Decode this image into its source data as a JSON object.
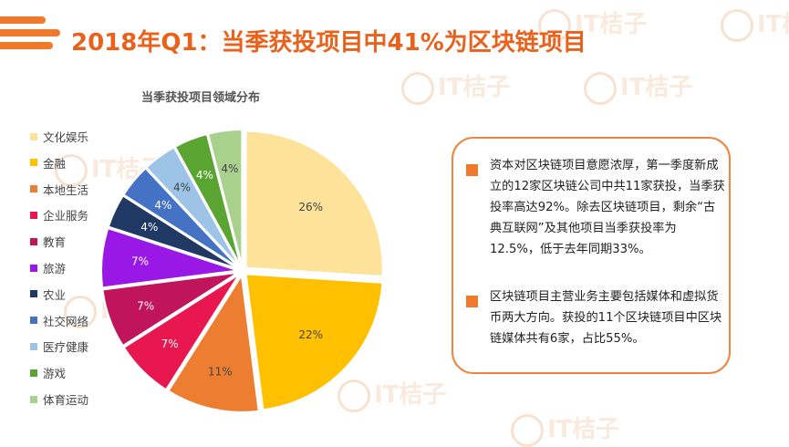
{
  "page": {
    "title": "2018年Q1：当季获投项目中41%为区块链项目",
    "watermark_text": "IT桔子"
  },
  "colors": {
    "accent": "#f07a2b",
    "title": "#e8621c"
  },
  "chart_data": {
    "type": "pie",
    "title": "当季获投项目领域分布",
    "slices": [
      {
        "label": "文化娱乐",
        "value": 26,
        "display": "26%",
        "color": "#fde39a"
      },
      {
        "label": "金融",
        "value": 22,
        "display": "22%",
        "color": "#ffc000"
      },
      {
        "label": "本地生活",
        "value": 11,
        "display": "11%",
        "color": "#ed7d31"
      },
      {
        "label": "企业服务",
        "value": 7,
        "display": "7%",
        "color": "#e8174f"
      },
      {
        "label": "教育",
        "value": 7,
        "display": "7%",
        "color": "#c0145b"
      },
      {
        "label": "旅游",
        "value": 7,
        "display": "7%",
        "color": "#9a18e6"
      },
      {
        "label": "农业",
        "value": 4,
        "display": "4%",
        "color": "#1f3864"
      },
      {
        "label": "社交网络",
        "value": 4,
        "display": "4%",
        "color": "#4472c4"
      },
      {
        "label": "医疗健康",
        "value": 4,
        "display": "4%",
        "color": "#9dc3e6"
      },
      {
        "label": "游戏",
        "value": 4,
        "display": "4%",
        "color": "#5aa531"
      },
      {
        "label": "体育运动",
        "value": 4,
        "display": "4%",
        "color": "#a9d18e"
      }
    ],
    "legend_position": "left"
  },
  "info": {
    "paragraphs": [
      "资本对区块链项目意愿浓厚，第一季度新成立的12家区块链公司中共11家获投，当季获投率高达92%。除去区块链项目，剩余“古典互联网”及其他项目当季获投率为12.5%，低于去年同期33%。",
      "区块链项目主营业务主要包括媒体和虚拟货币两大方向。获投的11个区块链项目中区块链媒体共有6家，占比55%。"
    ]
  }
}
